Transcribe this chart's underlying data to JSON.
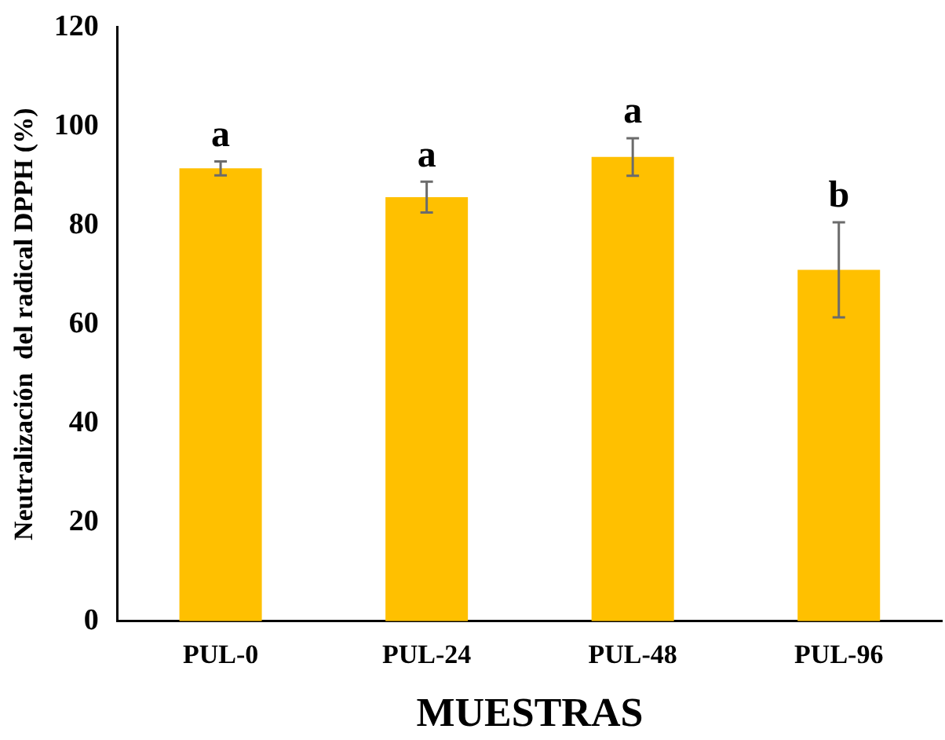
{
  "chart_data": {
    "type": "bar",
    "xlabel": "MUESTRAS",
    "ylabel": "Neutralización  del radical DPPH (%)",
    "categories": [
      "PUL-0",
      "PUL-24",
      "PUL-48",
      "PUL-96"
    ],
    "values": [
      91.5,
      85.7,
      93.8,
      71.0
    ],
    "errors": [
      1.4,
      3.1,
      3.8,
      9.6
    ],
    "color": "#ffc000",
    "ylim": [
      0,
      120
    ],
    "yticks": [
      0,
      20,
      40,
      60,
      80,
      100,
      120
    ],
    "grid": false,
    "legend": false,
    "annotations": [
      {
        "text": "a",
        "x": "PUL-0",
        "y": 92.9
      },
      {
        "text": "a",
        "x": "PUL-24",
        "y": 88.8
      },
      {
        "text": "a",
        "x": "PUL-48",
        "y": 97.6
      },
      {
        "text": "b",
        "x": "PUL-96",
        "y": 80.6
      }
    ]
  }
}
